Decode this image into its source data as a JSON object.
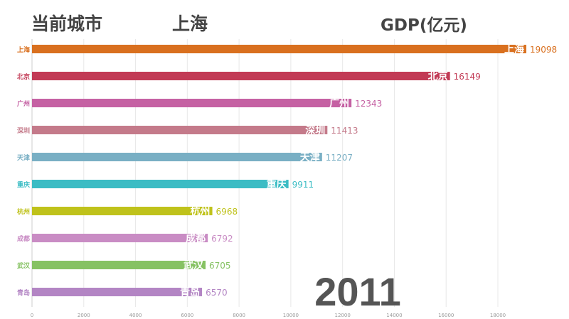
{
  "header": {
    "current_city_label": "当前城市",
    "current_city": "上海",
    "unit_label": "GDP(亿元)"
  },
  "chart_data": {
    "type": "bar",
    "orientation": "horizontal",
    "year": "2011",
    "categories": [
      "上海",
      "北京",
      "广州",
      "深圳",
      "天津",
      "重庆",
      "杭州",
      "成都",
      "武汉",
      "青岛"
    ],
    "values": [
      19098,
      16149,
      12343,
      11413,
      11207,
      9911,
      6968,
      6792,
      6705,
      6570
    ],
    "colors": [
      "#d9701f",
      "#c23a55",
      "#c561a3",
      "#c47a8a",
      "#79afc4",
      "#3bbcc4",
      "#bfc21b",
      "#c98cc4",
      "#86c263",
      "#b385c4"
    ],
    "xlim": [
      0,
      19500
    ],
    "xticks": [
      0,
      2000,
      4000,
      6000,
      8000,
      10000,
      12000,
      14000,
      16000,
      18000
    ],
    "grid": true
  }
}
